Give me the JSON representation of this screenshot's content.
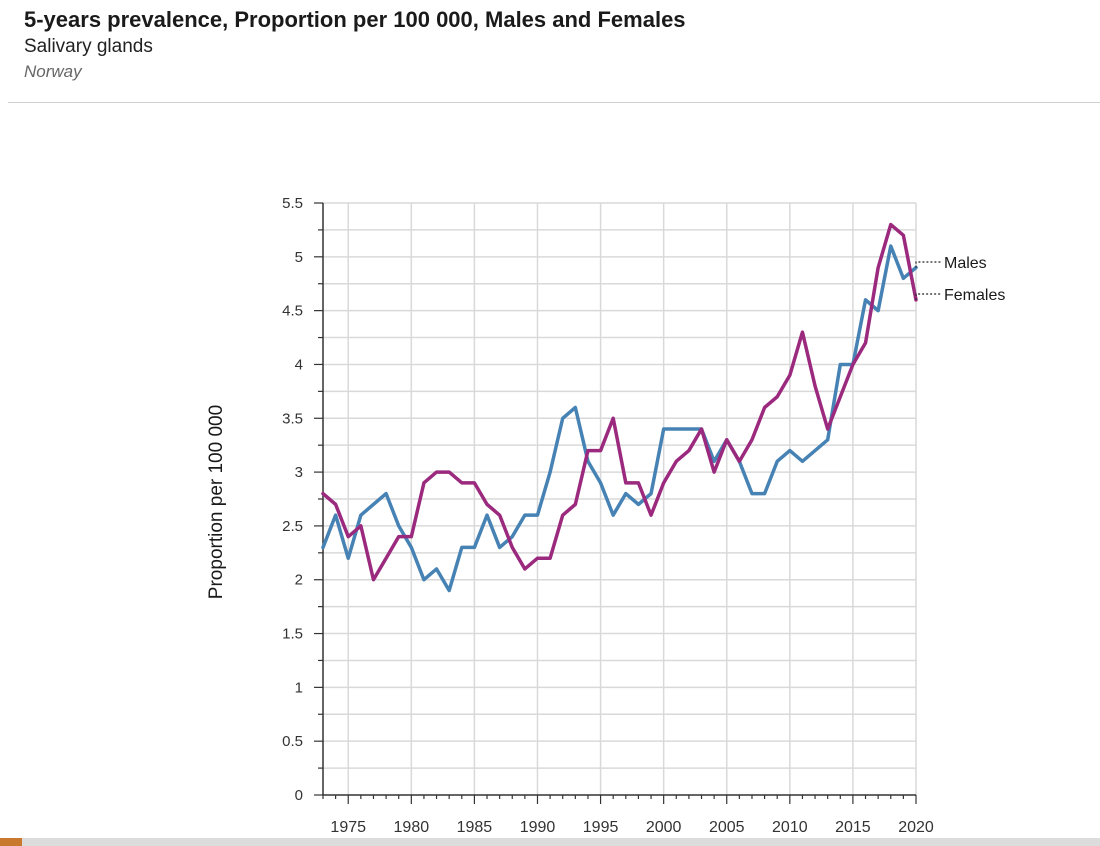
{
  "header": {
    "title": "5-years prevalence, Proportion per 100 000, Males and Females",
    "subtitle": "Salivary glands",
    "region": "Norway"
  },
  "chart_data": {
    "type": "line",
    "title": "5-years prevalence, Proportion per 100 000, Males and Females",
    "xlabel": "",
    "ylabel": "Proportion per 100 000",
    "xlim": [
      1973,
      2020
    ],
    "ylim": [
      0,
      5.5
    ],
    "grid": true,
    "x_ticks": [
      1975,
      1980,
      1985,
      1990,
      1995,
      2000,
      2005,
      2010,
      2015,
      2020
    ],
    "x_tick_labels": [
      "1975",
      "1980",
      "1985",
      "1990",
      "1995",
      "2000",
      "2005",
      "2010",
      "2015",
      "2020"
    ],
    "y_ticks": [
      0,
      0.5,
      1,
      1.5,
      2,
      2.5,
      3,
      3.5,
      4,
      4.5,
      5,
      5.5
    ],
    "y_tick_labels": [
      "0",
      "0.5",
      "1",
      "1.5",
      "2",
      "2.5",
      "3",
      "3.5",
      "4",
      "4.5",
      "5",
      "5.5"
    ],
    "legend_placement": "right, at line ends",
    "series": [
      {
        "name": "Males",
        "color": "#4682b4",
        "x": [
          1973,
          1974,
          1975,
          1976,
          1977,
          1978,
          1979,
          1980,
          1981,
          1982,
          1983,
          1984,
          1985,
          1986,
          1987,
          1988,
          1989,
          1990,
          1991,
          1992,
          1993,
          1994,
          1995,
          1996,
          1997,
          1998,
          1999,
          2000,
          2001,
          2002,
          2003,
          2004,
          2005,
          2006,
          2007,
          2008,
          2009,
          2010,
          2011,
          2012,
          2013,
          2014,
          2015,
          2016,
          2017,
          2018,
          2019,
          2020
        ],
        "values": [
          2.3,
          2.6,
          2.2,
          2.6,
          2.7,
          2.8,
          2.5,
          2.3,
          2.0,
          2.1,
          1.9,
          2.3,
          2.3,
          2.6,
          2.3,
          2.4,
          2.6,
          2.6,
          3.0,
          3.5,
          3.6,
          3.1,
          2.9,
          2.6,
          2.8,
          2.7,
          2.8,
          3.4,
          3.4,
          3.4,
          3.4,
          3.1,
          3.3,
          3.1,
          2.8,
          2.8,
          3.1,
          3.2,
          3.1,
          3.2,
          3.3,
          4.0,
          4.0,
          4.6,
          4.5,
          5.1,
          4.8,
          4.9
        ]
      },
      {
        "name": "Females",
        "color": "#9b2a7f",
        "x": [
          1973,
          1974,
          1975,
          1976,
          1977,
          1978,
          1979,
          1980,
          1981,
          1982,
          1983,
          1984,
          1985,
          1986,
          1987,
          1988,
          1989,
          1990,
          1991,
          1992,
          1993,
          1994,
          1995,
          1996,
          1997,
          1998,
          1999,
          2000,
          2001,
          2002,
          2003,
          2004,
          2005,
          2006,
          2007,
          2008,
          2009,
          2010,
          2011,
          2012,
          2013,
          2014,
          2015,
          2016,
          2017,
          2018,
          2019,
          2020
        ],
        "values": [
          2.8,
          2.7,
          2.4,
          2.5,
          2.0,
          2.2,
          2.4,
          2.4,
          2.9,
          3.0,
          3.0,
          2.9,
          2.9,
          2.7,
          2.6,
          2.3,
          2.1,
          2.2,
          2.2,
          2.6,
          2.7,
          3.2,
          3.2,
          3.5,
          2.9,
          2.9,
          2.6,
          2.9,
          3.1,
          3.2,
          3.4,
          3.0,
          3.3,
          3.1,
          3.3,
          3.6,
          3.7,
          3.9,
          4.3,
          3.8,
          3.4,
          3.7,
          4.0,
          4.2,
          4.9,
          5.3,
          5.2,
          4.6
        ]
      }
    ]
  }
}
